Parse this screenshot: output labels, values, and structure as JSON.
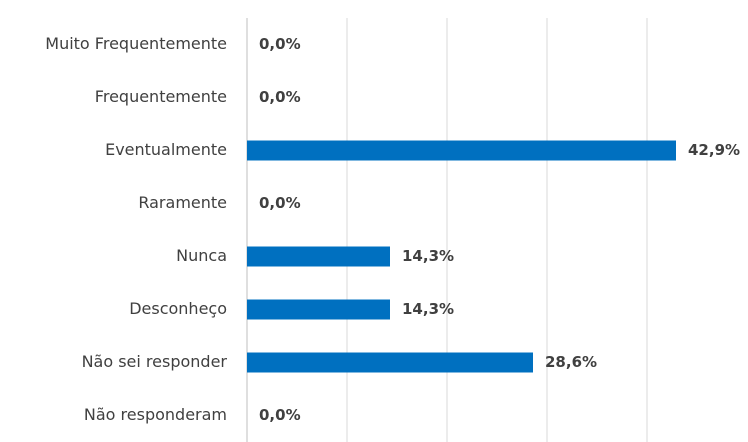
{
  "chart_data": {
    "type": "bar",
    "orientation": "horizontal",
    "categories": [
      "Muito Frequentemente",
      "Frequentemente",
      "Eventualmente",
      "Raramente",
      "Nunca",
      "Desconheço",
      "Não sei responder",
      "Não responderam"
    ],
    "values": [
      0,
      0,
      42.9,
      0,
      14.3,
      14.3,
      28.6,
      0
    ],
    "value_labels": [
      "0,0%",
      "0,0%",
      "42,9%",
      "0,0%",
      "14,3%",
      "14,3%",
      "28,6%",
      "0,0%"
    ],
    "color": "#0070c0",
    "xlim": [
      0,
      50
    ],
    "xticks": [
      0,
      10,
      20,
      30,
      40
    ],
    "grid": true
  }
}
